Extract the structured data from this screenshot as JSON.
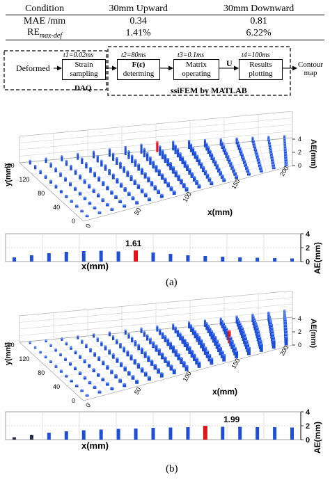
{
  "table": {
    "headers": [
      "Condition",
      "30mm Upward",
      "30mm Downward"
    ],
    "rows": [
      {
        "label": "MAE /mm",
        "up": "0.34",
        "down": "0.81"
      },
      {
        "label_main": "RE",
        "label_sub": "max-def",
        "up": "1.41%",
        "down": "6.22%"
      }
    ]
  },
  "flow": {
    "input": "Deformed",
    "box1_line1": "Strain",
    "box1_line2": "sampling",
    "box2_line1": "F(ε)",
    "box2_line2": "determing",
    "box3_line1": "Matrix",
    "box3_line2": "operating",
    "box4_line1": "Results",
    "box4_line2": "plotting",
    "output_line1": "Contour",
    "output_line2": "map",
    "t1": "t1=0.02ms",
    "t2": "t2=80ms",
    "t3": "t3=0.1ms",
    "t4": "t4=100ms",
    "u_label": "U",
    "daq_label": "DAQ",
    "ssifem_label": "ssiFEM by MATLAB"
  },
  "panel_a": {
    "x_axis_label": "x(mm)",
    "y_axis_label": "y(mm)",
    "z_axis_label": "AE(mm)",
    "x_ticks": [
      "0",
      "50",
      "100",
      "150",
      "200"
    ],
    "y_ticks": [
      "0",
      "40",
      "80",
      "120",
      "160"
    ],
    "z_ticks": [
      "0",
      "2",
      "4"
    ],
    "bar_annotation": "1.61",
    "bar_x_label": "x(mm)",
    "bar_y_label": "AE(mm)",
    "bar_y_ticks": [
      "0",
      "2",
      "4"
    ],
    "caption": "(a)"
  },
  "panel_b": {
    "x_axis_label": "x(mm)",
    "y_axis_label": "y(mm)",
    "z_axis_label": "AE(mm)",
    "x_ticks": [
      "0",
      "50",
      "100",
      "150",
      "200"
    ],
    "y_ticks": [
      "0",
      "40",
      "80",
      "120",
      "160"
    ],
    "z_ticks": [
      "0",
      "2",
      "4"
    ],
    "bar_annotation": "1.99",
    "bar_x_label": "x(mm)",
    "bar_y_label": "AE(mm)",
    "bar_y_ticks": [
      "0",
      "2",
      "4"
    ],
    "caption": "(b)"
  },
  "colors": {
    "bar": "#1f4fd6",
    "highlight": "#e0141a",
    "dark_bar": "#26304a"
  },
  "chart_data": [
    {
      "type": "bar",
      "title": "",
      "xlabel": "x(mm)",
      "ylabel": "AE(mm)",
      "ylim": [
        0,
        4
      ],
      "values": [
        0.6,
        0.9,
        1.2,
        1.4,
        1.5,
        1.55,
        1.45,
        1.61,
        1.3,
        1.1,
        0.9,
        0.8,
        0.7,
        0.6,
        0.55,
        0.5,
        0.45
      ],
      "highlight_index": 7,
      "annotation": "1.61"
    },
    {
      "type": "bar",
      "title": "",
      "xlabel": "x(mm)",
      "ylabel": "AE(mm)",
      "ylim": [
        0,
        4
      ],
      "values": [
        0.35,
        0.7,
        1.0,
        1.2,
        1.35,
        1.45,
        1.55,
        1.6,
        1.7,
        1.75,
        1.8,
        1.99,
        1.85,
        1.85,
        1.8,
        1.8,
        1.75
      ],
      "highlight_index": 11,
      "annotation": "1.99"
    }
  ]
}
